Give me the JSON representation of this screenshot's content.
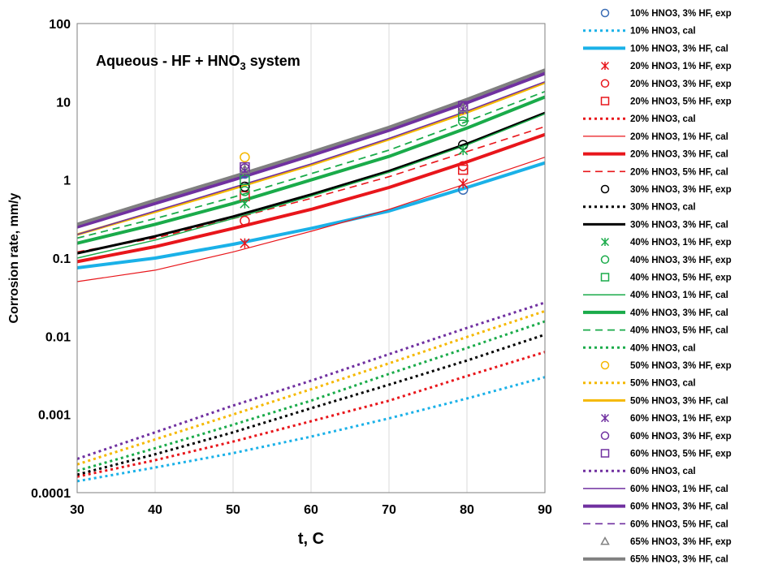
{
  "chart_data": {
    "type": "line",
    "title": "",
    "annotation": {
      "prefix": "Aqueous - HF + HNO",
      "sub": "3",
      "suffix": " system"
    },
    "xlabel": "t, C",
    "ylabel": "Corrosion rate, mm/y",
    "xlim": [
      30,
      90
    ],
    "ylim": [
      0.0001,
      100
    ],
    "y_scale": "log",
    "x_ticks": [
      "30",
      "40",
      "50",
      "60",
      "70",
      "80",
      "90"
    ],
    "y_ticks": [
      "0.0001",
      "0.001",
      "0.01",
      "0.1",
      "1",
      "10",
      "100"
    ],
    "grid": "vertical",
    "legend_position": "right",
    "series": [
      {
        "name": "10% HNO3, 3% HF, exp",
        "kind": "marker",
        "marker": "circle",
        "color": "#3b6db5",
        "x": [
          51.5,
          79.5
        ],
        "y": [
          1.2,
          0.75
        ]
      },
      {
        "name": "10% HNO3, cal",
        "kind": "line",
        "style": "dotted",
        "width": 3,
        "color": "#1ab1e8",
        "x": [
          30,
          40,
          50,
          60,
          70,
          80,
          90
        ],
        "y": [
          0.00014,
          0.00021,
          0.00032,
          0.00052,
          0.00089,
          0.0016,
          0.003
        ]
      },
      {
        "name": "10% HNO3, 3% HF, cal",
        "kind": "line",
        "style": "solid",
        "width": 4,
        "color": "#1ab1e8",
        "x": [
          30,
          40,
          50,
          60,
          70,
          80,
          90
        ],
        "y": [
          0.075,
          0.1,
          0.15,
          0.24,
          0.4,
          0.8,
          1.65
        ]
      },
      {
        "name": "20% HNO3, 1% HF, exp",
        "kind": "marker",
        "marker": "asterisk",
        "color": "#e8161b",
        "x": [
          51.5,
          79.5
        ],
        "y": [
          0.155,
          0.9
        ]
      },
      {
        "name": "20% HNO3, 3% HF, exp",
        "kind": "marker",
        "marker": "circle",
        "color": "#e8161b",
        "x": [
          51.5,
          79.5
        ],
        "y": [
          0.3,
          1.5
        ]
      },
      {
        "name": "20% HNO3, 5% HF, exp",
        "kind": "marker",
        "marker": "square",
        "color": "#e8161b",
        "x": [
          51.5,
          79.5
        ],
        "y": [
          0.62,
          1.35
        ]
      },
      {
        "name": "20% HNO3, cal",
        "kind": "line",
        "style": "dotted",
        "width": 3,
        "color": "#e8161b",
        "x": [
          30,
          40,
          50,
          60,
          70,
          80,
          90
        ],
        "y": [
          0.00016,
          0.00026,
          0.00045,
          0.00082,
          0.0015,
          0.0031,
          0.0063
        ]
      },
      {
        "name": "20% HNO3, 1% HF, cal",
        "kind": "line",
        "style": "solid",
        "width": 1.2,
        "color": "#e8161b",
        "x": [
          30,
          40,
          50,
          60,
          70,
          80,
          90
        ],
        "y": [
          0.05,
          0.07,
          0.12,
          0.22,
          0.42,
          0.9,
          1.95
        ]
      },
      {
        "name": "20% HNO3, 3% HF, cal",
        "kind": "line",
        "style": "solid",
        "width": 4,
        "color": "#e8161b",
        "x": [
          30,
          40,
          50,
          60,
          70,
          80,
          90
        ],
        "y": [
          0.09,
          0.14,
          0.24,
          0.42,
          0.8,
          1.7,
          3.8
        ]
      },
      {
        "name": "20% HNO3, 5% HF, cal",
        "kind": "line",
        "style": "dashed",
        "width": 1.6,
        "color": "#e8161b",
        "x": [
          30,
          40,
          50,
          60,
          70,
          80,
          90
        ],
        "y": [
          0.12,
          0.18,
          0.32,
          0.58,
          1.1,
          2.3,
          4.8
        ]
      },
      {
        "name": "30% HNO3, 3% HF, exp",
        "kind": "marker",
        "marker": "circle",
        "color": "#000000",
        "x": [
          51.5,
          79.5
        ],
        "y": [
          0.82,
          2.8
        ]
      },
      {
        "name": "30% HNO3, cal",
        "kind": "line",
        "style": "dotted",
        "width": 3,
        "color": "#000000",
        "x": [
          30,
          40,
          50,
          60,
          70,
          80,
          90
        ],
        "y": [
          0.00017,
          0.00031,
          0.00059,
          0.0012,
          0.0024,
          0.0049,
          0.0105
        ]
      },
      {
        "name": "30% HNO3, 3% HF, cal",
        "kind": "line",
        "style": "solid",
        "width": 3,
        "color": "#000000",
        "x": [
          30,
          40,
          50,
          60,
          70,
          80,
          90
        ],
        "y": [
          0.115,
          0.19,
          0.34,
          0.65,
          1.3,
          2.9,
          7.2
        ]
      },
      {
        "name": "40% HNO3, 1% HF, exp",
        "kind": "marker",
        "marker": "asterisk",
        "color": "#1aab4a",
        "x": [
          51.5,
          79.5
        ],
        "y": [
          0.5,
          2.4
        ]
      },
      {
        "name": "40% HNO3, 3% HF, exp",
        "kind": "marker",
        "marker": "circle",
        "color": "#1aab4a",
        "x": [
          51.5,
          79.5
        ],
        "y": [
          0.72,
          5.6
        ]
      },
      {
        "name": "40% HNO3, 5% HF, exp",
        "kind": "marker",
        "marker": "square",
        "color": "#1aab4a",
        "x": [
          51.5,
          79.5
        ],
        "y": [
          1.0,
          6.6
        ]
      },
      {
        "name": "40% HNO3, 1% HF, cal",
        "kind": "line",
        "style": "solid",
        "width": 1.5,
        "color": "#1aab4a",
        "x": [
          30,
          40,
          50,
          60,
          70,
          80,
          90
        ],
        "y": [
          0.1,
          0.17,
          0.32,
          0.62,
          1.25,
          2.8,
          7.0
        ]
      },
      {
        "name": "40% HNO3, 3% HF, cal",
        "kind": "line",
        "style": "solid",
        "width": 4,
        "color": "#1aab4a",
        "x": [
          30,
          40,
          50,
          60,
          70,
          80,
          90
        ],
        "y": [
          0.155,
          0.27,
          0.5,
          1.0,
          2.0,
          4.6,
          11.5
        ]
      },
      {
        "name": "40% HNO3, 5% HF, cal",
        "kind": "line",
        "style": "dashed",
        "width": 1.8,
        "color": "#1aab4a",
        "x": [
          30,
          40,
          50,
          60,
          70,
          80,
          90
        ],
        "y": [
          0.18,
          0.32,
          0.6,
          1.2,
          2.4,
          5.6,
          13.5
        ]
      },
      {
        "name": "40% HNO3, cal",
        "kind": "line",
        "style": "dotted",
        "width": 3,
        "color": "#1aab4a",
        "x": [
          30,
          40,
          50,
          60,
          70,
          80,
          90
        ],
        "y": [
          0.00019,
          0.00037,
          0.00074,
          0.0015,
          0.0033,
          0.0071,
          0.0155
        ]
      },
      {
        "name": "50% HNO3, 3% HF, exp",
        "kind": "marker",
        "marker": "circle",
        "color": "#f5b800",
        "x": [
          51.5
        ],
        "y": [
          1.95
        ]
      },
      {
        "name": "50% HNO3, cal",
        "kind": "line",
        "style": "dotted",
        "width": 3,
        "color": "#f5b800",
        "x": [
          30,
          40,
          50,
          60,
          70,
          80,
          90
        ],
        "y": [
          0.00023,
          0.00048,
          0.001,
          0.0021,
          0.0045,
          0.0098,
          0.021
        ]
      },
      {
        "name": "50% HNO3, 3% HF, cal",
        "kind": "line",
        "style": "solid",
        "width": 3,
        "color": "#f5b800",
        "x": [
          30,
          40,
          50,
          60,
          70,
          80,
          90
        ],
        "y": [
          0.2,
          0.39,
          0.77,
          1.55,
          3.3,
          7.3,
          17.5
        ]
      },
      {
        "name": "60% HNO3, 1% HF, exp",
        "kind": "marker",
        "marker": "asterisk",
        "color": "#7030a0",
        "x": [
          51.5,
          79.5
        ],
        "y": [
          1.3,
          8.0
        ]
      },
      {
        "name": "60% HNO3, 3% HF, exp",
        "kind": "marker",
        "marker": "circle",
        "color": "#7030a0",
        "x": [
          51.5,
          79.5
        ],
        "y": [
          1.4,
          8.5
        ]
      },
      {
        "name": "60% HNO3, 5% HF, exp",
        "kind": "marker",
        "marker": "square",
        "color": "#7030a0",
        "x": [
          51.5,
          79.5
        ],
        "y": [
          1.45,
          8.8
        ]
      },
      {
        "name": "60% HNO3, cal",
        "kind": "line",
        "style": "dotted",
        "width": 3,
        "color": "#7030a0",
        "x": [
          30,
          40,
          50,
          60,
          70,
          80,
          90
        ],
        "y": [
          0.00027,
          0.00059,
          0.0013,
          0.0027,
          0.0059,
          0.0128,
          0.027
        ]
      },
      {
        "name": "60% HNO3, 1% HF, cal",
        "kind": "line",
        "style": "solid",
        "width": 1.5,
        "color": "#7030a0",
        "x": [
          30,
          40,
          50,
          60,
          70,
          80,
          90
        ],
        "y": [
          0.2,
          0.4,
          0.8,
          1.6,
          3.4,
          7.6,
          18.0
        ]
      },
      {
        "name": "60% HNO3, 3% HF, cal",
        "kind": "line",
        "style": "solid",
        "width": 4,
        "color": "#7030a0",
        "x": [
          30,
          40,
          50,
          60,
          70,
          80,
          90
        ],
        "y": [
          0.25,
          0.5,
          1.0,
          2.05,
          4.3,
          9.7,
          23.0
        ]
      },
      {
        "name": "60% HNO3, 5% HF, cal",
        "kind": "line",
        "style": "dashed",
        "width": 1.6,
        "color": "#7030a0",
        "x": [
          30,
          40,
          50,
          60,
          70,
          80,
          90
        ],
        "y": [
          0.26,
          0.53,
          1.05,
          2.15,
          4.5,
          10.2,
          24.0
        ]
      },
      {
        "name": "65% HNO3, 3% HF, exp",
        "kind": "marker",
        "marker": "triangle",
        "color": "#808080",
        "x": [
          51.5,
          79.5
        ],
        "y": [
          1.35,
          8.3
        ]
      },
      {
        "name": "65% HNO3, 3% HF, cal",
        "kind": "line",
        "style": "solid",
        "width": 4,
        "color": "#808080",
        "x": [
          30,
          40,
          50,
          60,
          70,
          80,
          90
        ],
        "y": [
          0.27,
          0.55,
          1.1,
          2.25,
          4.7,
          10.7,
          25.5
        ]
      }
    ]
  }
}
